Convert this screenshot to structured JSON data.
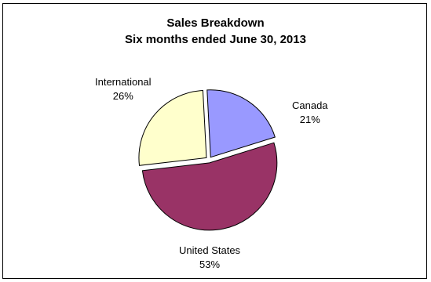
{
  "chart_data": {
    "type": "pie",
    "title": "Sales Breakdown",
    "subtitle": "Six months ended June 30, 2013",
    "slices": [
      {
        "label": "Canada",
        "pct_label": "21%",
        "value": 21,
        "color": "#9999ff"
      },
      {
        "label": "United States",
        "pct_label": "53%",
        "value": 53,
        "color": "#993366"
      },
      {
        "label": "International",
        "pct_label": "26%",
        "value": 26,
        "color": "#ffffcc"
      }
    ],
    "exploded": true,
    "legend": "none"
  }
}
